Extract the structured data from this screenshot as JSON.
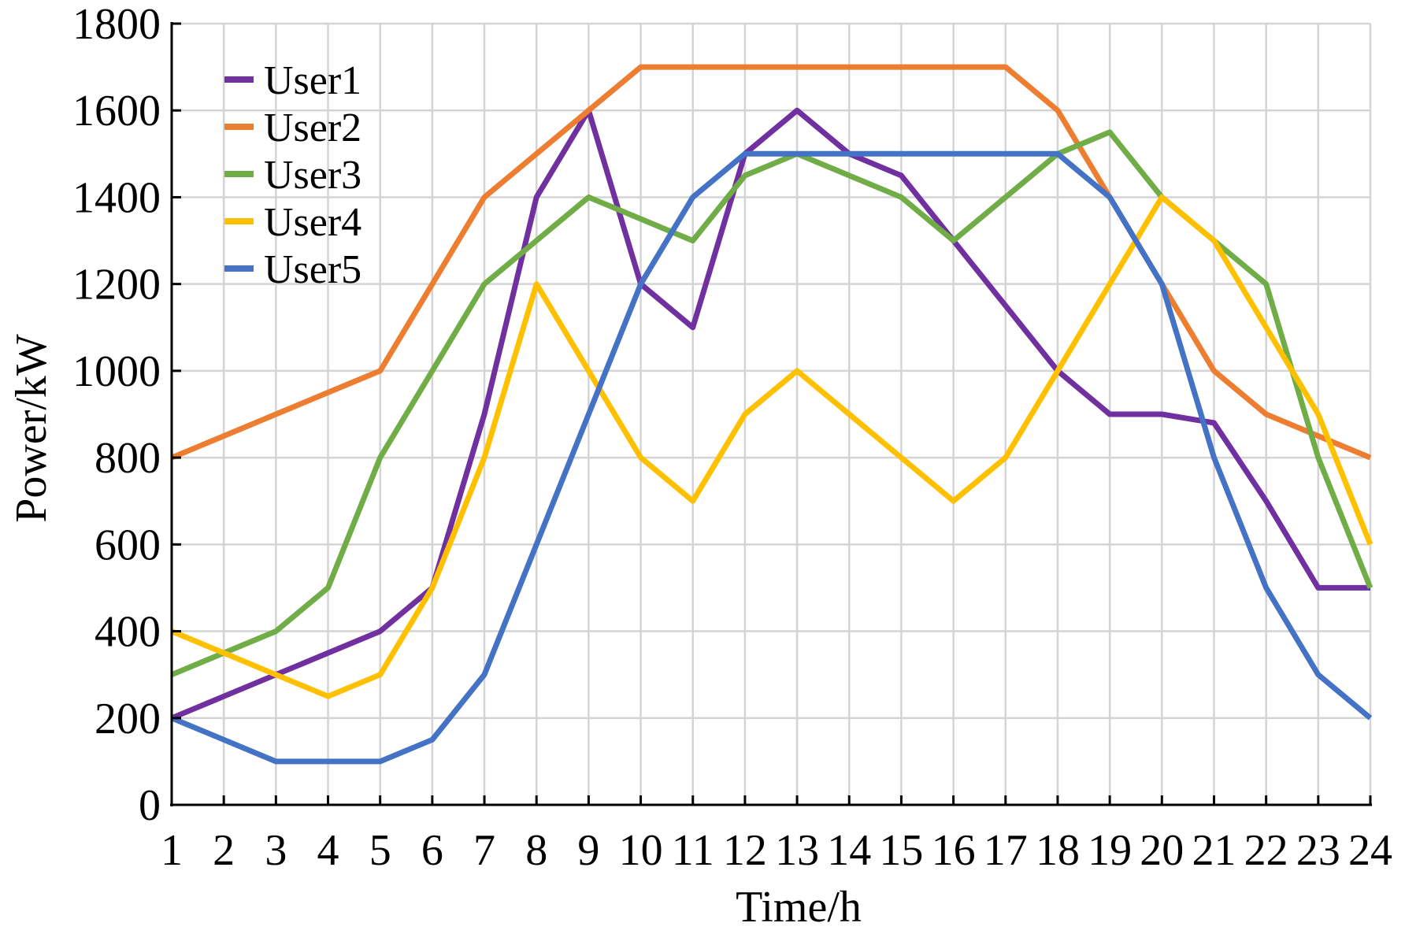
{
  "chart_data": {
    "type": "line",
    "title": "",
    "xlabel": "Time/h",
    "ylabel": "Power/kW",
    "xlim": [
      1,
      24
    ],
    "ylim": [
      0,
      1800
    ],
    "x": [
      1,
      2,
      3,
      4,
      5,
      6,
      7,
      8,
      9,
      10,
      11,
      12,
      13,
      14,
      15,
      16,
      17,
      18,
      19,
      20,
      21,
      22,
      23,
      24
    ],
    "x_ticks": [
      "1",
      "2",
      "3",
      "4",
      "5",
      "6",
      "7",
      "8",
      "9",
      "10",
      "11",
      "12",
      "13",
      "14",
      "15",
      "16",
      "17",
      "18",
      "19",
      "20",
      "21",
      "22",
      "23",
      "24"
    ],
    "y_ticks": [
      "0",
      "200",
      "400",
      "600",
      "800",
      "1000",
      "1200",
      "1400",
      "1600",
      "1800"
    ],
    "y_tick_values": [
      0,
      200,
      400,
      600,
      800,
      1000,
      1200,
      1400,
      1600,
      1800
    ],
    "grid": true,
    "legend_position": "top-left",
    "series": [
      {
        "name": "User1",
        "color": "#7030A0",
        "values": [
          200,
          250,
          300,
          350,
          400,
          500,
          900,
          1400,
          1600,
          1200,
          1100,
          1500,
          1600,
          1500,
          1450,
          1300,
          1150,
          1000,
          900,
          900,
          880,
          700,
          500,
          500
        ]
      },
      {
        "name": "User2",
        "color": "#ED7D31",
        "values": [
          800,
          850,
          900,
          950,
          1000,
          1200,
          1400,
          1500,
          1600,
          1700,
          1700,
          1700,
          1700,
          1700,
          1700,
          1700,
          1700,
          1600,
          1400,
          1200,
          1000,
          900,
          850,
          800
        ]
      },
      {
        "name": "User3",
        "color": "#70AD47",
        "values": [
          300,
          350,
          400,
          500,
          800,
          1000,
          1200,
          1300,
          1400,
          1350,
          1300,
          1450,
          1500,
          1450,
          1400,
          1300,
          1400,
          1500,
          1550,
          1400,
          1300,
          1200,
          800,
          500
        ]
      },
      {
        "name": "User4",
        "color": "#FFC000",
        "values": [
          400,
          350,
          300,
          250,
          300,
          500,
          800,
          1200,
          1000,
          800,
          700,
          900,
          1000,
          900,
          800,
          700,
          800,
          1000,
          1200,
          1400,
          1300,
          1100,
          900,
          600
        ]
      },
      {
        "name": "User5",
        "color": "#4472C4",
        "values": [
          200,
          150,
          100,
          100,
          100,
          150,
          300,
          600,
          900,
          1200,
          1400,
          1500,
          1500,
          1500,
          1500,
          1500,
          1500,
          1500,
          1400,
          1200,
          800,
          500,
          300,
          200
        ]
      }
    ]
  }
}
